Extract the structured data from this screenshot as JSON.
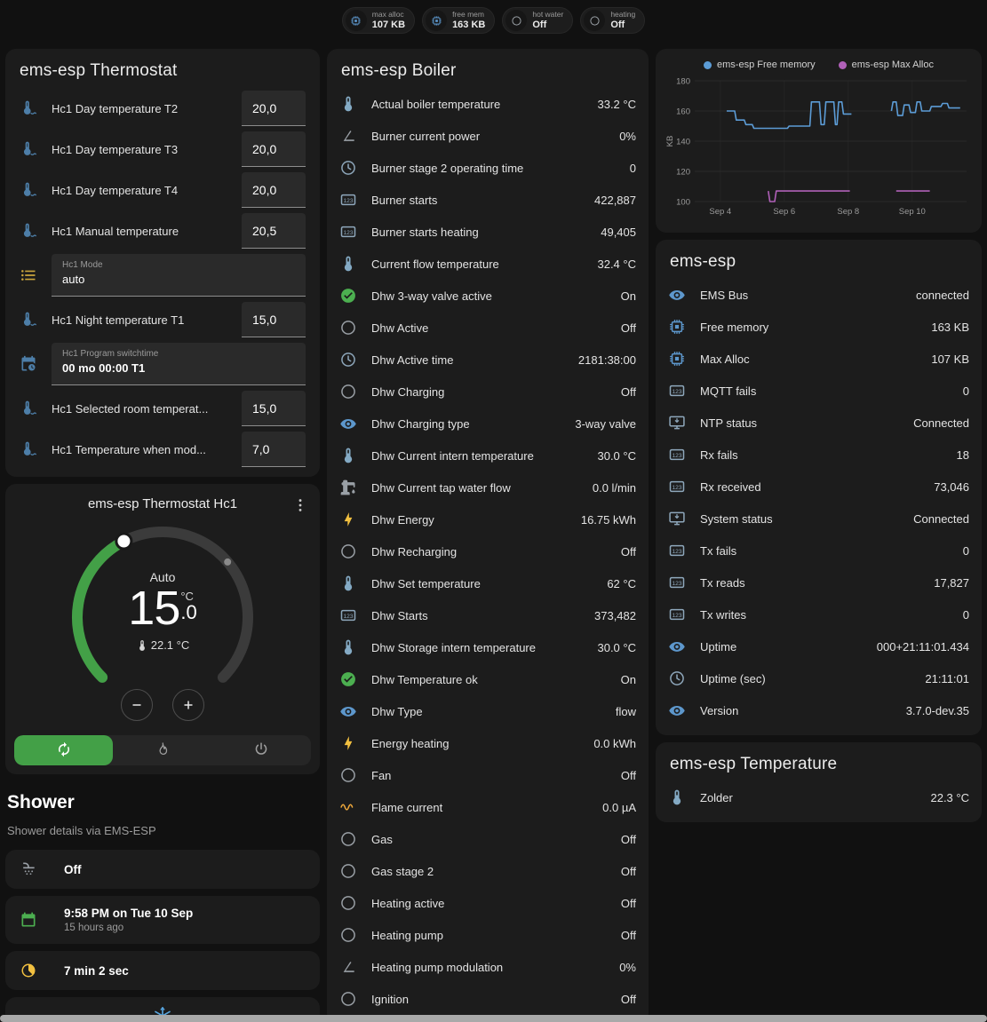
{
  "colors": {
    "page_bg": "#111111",
    "card_bg": "#1c1c1c",
    "accent_green": "#43a047",
    "icon_blue": "#5d97cc",
    "icon_slate": "#8ea7bb",
    "icon_thermo": "#84aac4",
    "icon_gray": "#9aa0a6",
    "icon_yellow": "#f2c040",
    "icon_orange": "#eda73b",
    "icon_green": "#4caf50"
  },
  "topbar": {
    "badges": [
      {
        "icon": "chip",
        "color": "#5d97cc",
        "label": "max alloc",
        "value": "107 KB"
      },
      {
        "icon": "chip",
        "color": "#5d97cc",
        "label": "free mem",
        "value": "163 KB"
      },
      {
        "icon": "circle",
        "color": "#9aa0a6",
        "label": "hot water",
        "value": "Off"
      },
      {
        "icon": "circle",
        "color": "#9aa0a6",
        "label": "heating",
        "value": "Off"
      }
    ]
  },
  "thermostat_card": {
    "title": "ems-esp Thermostat",
    "rows": [
      {
        "type": "number",
        "icon": "water-thermometer",
        "color": "#4d7ea8",
        "label": "Hc1 Day temperature T2",
        "value": "20,0"
      },
      {
        "type": "number",
        "icon": "water-thermometer",
        "color": "#4d7ea8",
        "label": "Hc1 Day temperature T3",
        "value": "20,0"
      },
      {
        "type": "number",
        "icon": "water-thermometer",
        "color": "#4d7ea8",
        "label": "Hc1 Day temperature T4",
        "value": "20,0"
      },
      {
        "type": "number",
        "icon": "water-thermometer",
        "color": "#4d7ea8",
        "label": "Hc1 Manual temperature",
        "value": "20,5"
      },
      {
        "type": "select",
        "icon": "list",
        "color": "#caa53d",
        "label": "Hc1 Mode",
        "value": "auto"
      },
      {
        "type": "number",
        "icon": "water-thermometer",
        "color": "#4d7ea8",
        "label": "Hc1 Night temperature T1",
        "value": "15,0"
      },
      {
        "type": "text",
        "icon": "calendar-clock",
        "color": "#4d7ea8",
        "label": "Hc1 Program switchtime",
        "value": "00 mo 00:00 T1"
      },
      {
        "type": "number",
        "icon": "water-thermometer",
        "color": "#4d7ea8",
        "label": "Hc1 Selected room temperat...",
        "value": "15,0"
      },
      {
        "type": "number",
        "icon": "water-thermometer",
        "color": "#4d7ea8",
        "label": "Hc1 Temperature when mod...",
        "value": "7,0"
      }
    ]
  },
  "dial_card": {
    "title": "ems-esp Thermostat Hc1",
    "mode_label": "Auto",
    "temp_int": "15",
    "temp_dec": ".0",
    "temp_unit": "°C",
    "current_label": "22.1 °C",
    "min": 5,
    "max": 30,
    "target": 15,
    "current": 22.1,
    "arc_color": "#43a047",
    "track_color": "#3b3b3b",
    "mode_buttons": [
      {
        "icon": "autorenew",
        "active": true
      },
      {
        "icon": "flame",
        "active": false
      },
      {
        "icon": "power",
        "active": false
      }
    ]
  },
  "shower_section": {
    "title": "Shower",
    "subtitle": "Shower details via EMS-ESP",
    "rows": [
      {
        "icon": "shower",
        "color": "#9aa0a6",
        "primary": "Off",
        "secondary": ""
      },
      {
        "icon": "calendar",
        "color": "#4caf50",
        "primary": "9:58 PM on Tue 10 Sep",
        "secondary": "15 hours ago"
      },
      {
        "icon": "timer",
        "color": "#f2c040",
        "primary": "7 min 2 sec",
        "secondary": ""
      }
    ],
    "partial_row": {
      "icon": "snowflake",
      "color": "#58a6e0"
    }
  },
  "boiler_card": {
    "title": "ems-esp Boiler",
    "rows": [
      {
        "icon": "thermometer",
        "color": "#84aac4",
        "label": "Actual boiler temperature",
        "value": "33.2 °C"
      },
      {
        "icon": "angle",
        "color": "#9aa0a6",
        "label": "Burner current power",
        "value": "0%"
      },
      {
        "icon": "clock",
        "color": "#8ea7bb",
        "label": "Burner stage 2 operating time",
        "value": "0"
      },
      {
        "icon": "counter",
        "color": "#8ea7bb",
        "label": "Burner starts",
        "value": "422,887"
      },
      {
        "icon": "counter",
        "color": "#8ea7bb",
        "label": "Burner starts heating",
        "value": "49,405"
      },
      {
        "icon": "thermometer",
        "color": "#84aac4",
        "label": "Current flow temperature",
        "value": "32.4 °C"
      },
      {
        "icon": "check-circle",
        "color": "#4caf50",
        "label": "Dhw 3-way valve active",
        "value": "On"
      },
      {
        "icon": "circle",
        "color": "#9aa0a6",
        "label": "Dhw Active",
        "value": "Off"
      },
      {
        "icon": "clock",
        "color": "#8ea7bb",
        "label": "Dhw Active time",
        "value": "2181:38:00"
      },
      {
        "icon": "circle",
        "color": "#9aa0a6",
        "label": "Dhw Charging",
        "value": "Off"
      },
      {
        "icon": "eye",
        "color": "#5d97cc",
        "label": "Dhw Charging type",
        "value": "3-way valve"
      },
      {
        "icon": "thermometer",
        "color": "#84aac4",
        "label": "Dhw Current intern temperature",
        "value": "30.0 °C"
      },
      {
        "icon": "water-pump",
        "color": "#9aa0a6",
        "label": "Dhw Current tap water flow",
        "value": "0.0 l/min"
      },
      {
        "icon": "bolt",
        "color": "#f2c040",
        "label": "Dhw Energy",
        "value": "16.75 kWh"
      },
      {
        "icon": "circle",
        "color": "#9aa0a6",
        "label": "Dhw Recharging",
        "value": "Off"
      },
      {
        "icon": "thermometer",
        "color": "#84aac4",
        "label": "Dhw Set temperature",
        "value": "62 °C"
      },
      {
        "icon": "counter",
        "color": "#8ea7bb",
        "label": "Dhw Starts",
        "value": "373,482"
      },
      {
        "icon": "thermometer",
        "color": "#84aac4",
        "label": "Dhw Storage intern temperature",
        "value": "30.0 °C"
      },
      {
        "icon": "check-circle",
        "color": "#4caf50",
        "label": "Dhw Temperature ok",
        "value": "On"
      },
      {
        "icon": "eye",
        "color": "#5d97cc",
        "label": "Dhw Type",
        "value": "flow"
      },
      {
        "icon": "bolt",
        "color": "#f2c040",
        "label": "Energy heating",
        "value": "0.0 kWh"
      },
      {
        "icon": "circle",
        "color": "#9aa0a6",
        "label": "Fan",
        "value": "Off"
      },
      {
        "icon": "sine",
        "color": "#eda73b",
        "label": "Flame current",
        "value": "0.0 µA"
      },
      {
        "icon": "circle",
        "color": "#9aa0a6",
        "label": "Gas",
        "value": "Off"
      },
      {
        "icon": "circle",
        "color": "#9aa0a6",
        "label": "Gas stage 2",
        "value": "Off"
      },
      {
        "icon": "circle",
        "color": "#9aa0a6",
        "label": "Heating active",
        "value": "Off"
      },
      {
        "icon": "circle",
        "color": "#9aa0a6",
        "label": "Heating pump",
        "value": "Off"
      },
      {
        "icon": "angle",
        "color": "#9aa0a6",
        "label": "Heating pump modulation",
        "value": "0%"
      },
      {
        "icon": "circle",
        "color": "#9aa0a6",
        "label": "Ignition",
        "value": "Off"
      }
    ]
  },
  "chart_data": {
    "type": "line",
    "title": "",
    "xlabel": "",
    "ylabel": "KB",
    "grid": true,
    "legend_position": "top",
    "x_range": [
      3.2,
      11.7
    ],
    "y_range": [
      100,
      180
    ],
    "y_ticks": [
      100,
      120,
      140,
      160,
      180
    ],
    "x_ticks": [
      {
        "v": 4,
        "label": "Sep 4"
      },
      {
        "v": 6,
        "label": "Sep 6"
      },
      {
        "v": 8,
        "label": "Sep 8"
      },
      {
        "v": 10,
        "label": "Sep 10"
      }
    ],
    "series": [
      {
        "name": "ems-esp Free memory",
        "color": "#5c9cd6",
        "points": [
          [
            4.2,
            160
          ],
          [
            4.45,
            160
          ],
          [
            4.5,
            154
          ],
          [
            4.75,
            154
          ],
          [
            4.8,
            151
          ],
          [
            5.0,
            151
          ],
          [
            5.05,
            148.5
          ],
          [
            6.1,
            148.5
          ],
          [
            6.15,
            150
          ],
          [
            6.8,
            150
          ],
          [
            6.85,
            166
          ],
          [
            7.1,
            166
          ],
          [
            7.15,
            151
          ],
          [
            7.25,
            151
          ],
          [
            7.3,
            166
          ],
          [
            7.55,
            166
          ],
          [
            7.6,
            151
          ],
          [
            7.65,
            151
          ],
          [
            7.7,
            166
          ],
          [
            7.8,
            166
          ],
          [
            7.85,
            158
          ],
          [
            8.1,
            158
          ],
          null,
          [
            9.35,
            160
          ],
          [
            9.4,
            166
          ],
          [
            9.5,
            166
          ],
          [
            9.55,
            157
          ],
          [
            9.7,
            157
          ],
          [
            9.75,
            164
          ],
          [
            9.9,
            164
          ],
          [
            9.95,
            159
          ],
          [
            10.1,
            159
          ],
          [
            10.15,
            166
          ],
          [
            10.25,
            166
          ],
          [
            10.3,
            160
          ],
          [
            10.55,
            160
          ],
          [
            10.6,
            163
          ],
          [
            10.9,
            163
          ],
          [
            10.95,
            165
          ],
          [
            11.1,
            165
          ],
          [
            11.15,
            162
          ],
          [
            11.5,
            162
          ]
        ]
      },
      {
        "name": "ems-esp Max Alloc",
        "color": "#b060b8",
        "points": [
          [
            5.5,
            107
          ],
          [
            5.55,
            100
          ],
          [
            5.7,
            100
          ],
          [
            5.75,
            107
          ],
          [
            8.05,
            107
          ],
          null,
          [
            9.5,
            107
          ],
          [
            10.55,
            107
          ]
        ]
      }
    ]
  },
  "emsesp_card": {
    "title": "ems-esp",
    "rows": [
      {
        "icon": "eye",
        "color": "#5d97cc",
        "label": "EMS Bus",
        "value": "connected"
      },
      {
        "icon": "chip",
        "color": "#5d97cc",
        "label": "Free memory",
        "value": "163 KB"
      },
      {
        "icon": "chip",
        "color": "#5d97cc",
        "label": "Max Alloc",
        "value": "107 KB"
      },
      {
        "icon": "counter",
        "color": "#8ea7bb",
        "label": "MQTT fails",
        "value": "0"
      },
      {
        "icon": "monitor",
        "color": "#8ea7bb",
        "label": "NTP status",
        "value": "Connected"
      },
      {
        "icon": "counter",
        "color": "#8ea7bb",
        "label": "Rx fails",
        "value": "18"
      },
      {
        "icon": "counter",
        "color": "#8ea7bb",
        "label": "Rx received",
        "value": "73,046"
      },
      {
        "icon": "monitor",
        "color": "#8ea7bb",
        "label": "System status",
        "value": "Connected"
      },
      {
        "icon": "counter",
        "color": "#8ea7bb",
        "label": "Tx fails",
        "value": "0"
      },
      {
        "icon": "counter",
        "color": "#8ea7bb",
        "label": "Tx reads",
        "value": "17,827"
      },
      {
        "icon": "counter",
        "color": "#8ea7bb",
        "label": "Tx writes",
        "value": "0"
      },
      {
        "icon": "eye",
        "color": "#5d97cc",
        "label": "Uptime",
        "value": "000+21:11:01.434"
      },
      {
        "icon": "clock",
        "color": "#8ea7bb",
        "label": "Uptime (sec)",
        "value": "21:11:01"
      },
      {
        "icon": "eye",
        "color": "#5d97cc",
        "label": "Version",
        "value": "3.7.0-dev.35"
      }
    ]
  },
  "temperature_card": {
    "title": "ems-esp Temperature",
    "rows": [
      {
        "icon": "thermometer",
        "color": "#84aac4",
        "label": "Zolder",
        "value": "22.3 °C"
      }
    ]
  }
}
